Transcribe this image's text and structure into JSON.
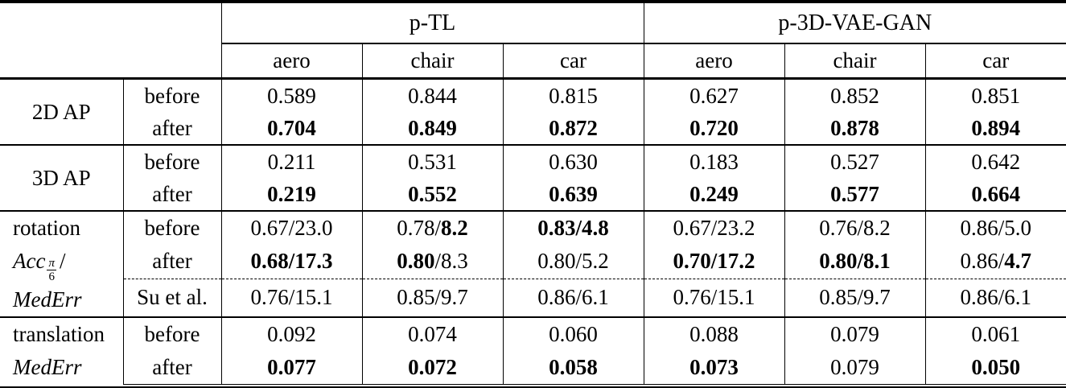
{
  "table": {
    "groups": [
      {
        "label": "p-TL"
      },
      {
        "label": "p-3D-VAE-GAN"
      }
    ],
    "columns": [
      "aero",
      "chair",
      "car",
      "aero",
      "chair",
      "car"
    ],
    "sections": [
      {
        "label": {
          "line1": "2D AP"
        },
        "rows": [
          {
            "sub": "before",
            "cells": [
              [
                {
                  "t": "0.589",
                  "b": false
                }
              ],
              [
                {
                  "t": "0.844",
                  "b": false
                }
              ],
              [
                {
                  "t": "0.815",
                  "b": false
                }
              ],
              [
                {
                  "t": "0.627",
                  "b": false
                }
              ],
              [
                {
                  "t": "0.852",
                  "b": false
                }
              ],
              [
                {
                  "t": "0.851",
                  "b": false
                }
              ]
            ]
          },
          {
            "sub": "after",
            "cells": [
              [
                {
                  "t": "0.704",
                  "b": true
                }
              ],
              [
                {
                  "t": "0.849",
                  "b": true
                }
              ],
              [
                {
                  "t": "0.872",
                  "b": true
                }
              ],
              [
                {
                  "t": "0.720",
                  "b": true
                }
              ],
              [
                {
                  "t": "0.878",
                  "b": true
                }
              ],
              [
                {
                  "t": "0.894",
                  "b": true
                }
              ]
            ]
          }
        ]
      },
      {
        "label": {
          "line1": "3D AP"
        },
        "rows": [
          {
            "sub": "before",
            "cells": [
              [
                {
                  "t": "0.211",
                  "b": false
                }
              ],
              [
                {
                  "t": "0.531",
                  "b": false
                }
              ],
              [
                {
                  "t": "0.630",
                  "b": false
                }
              ],
              [
                {
                  "t": "0.183",
                  "b": false
                }
              ],
              [
                {
                  "t": "0.527",
                  "b": false
                }
              ],
              [
                {
                  "t": "0.642",
                  "b": false
                }
              ]
            ]
          },
          {
            "sub": "after",
            "cells": [
              [
                {
                  "t": "0.219",
                  "b": true
                }
              ],
              [
                {
                  "t": "0.552",
                  "b": true
                }
              ],
              [
                {
                  "t": "0.639",
                  "b": true
                }
              ],
              [
                {
                  "t": "0.249",
                  "b": true
                }
              ],
              [
                {
                  "t": "0.577",
                  "b": true
                }
              ],
              [
                {
                  "t": "0.664",
                  "b": true
                }
              ]
            ]
          }
        ]
      },
      {
        "label": {
          "line1": "rotation",
          "acc": "Acc",
          "frac_num": "π",
          "frac_den": "6",
          "slash": "/",
          "mederr": "MedErr"
        },
        "rows": [
          {
            "sub": "before",
            "cells": [
              [
                {
                  "t": "0.67/23.0",
                  "b": false
                }
              ],
              [
                {
                  "t": "0.78/",
                  "b": false
                },
                {
                  "t": "8.2",
                  "b": true
                }
              ],
              [
                {
                  "t": "0.83/4.8",
                  "b": true
                }
              ],
              [
                {
                  "t": "0.67/23.2",
                  "b": false
                }
              ],
              [
                {
                  "t": "0.76/8.2",
                  "b": false
                }
              ],
              [
                {
                  "t": "0.86/5.0",
                  "b": false
                }
              ]
            ]
          },
          {
            "sub": "after",
            "cells": [
              [
                {
                  "t": "0.68/17.3",
                  "b": true
                }
              ],
              [
                {
                  "t": "0.80",
                  "b": true
                },
                {
                  "t": "/8.3",
                  "b": false
                }
              ],
              [
                {
                  "t": "0.80/5.2",
                  "b": false
                }
              ],
              [
                {
                  "t": "0.70/17.2",
                  "b": true
                }
              ],
              [
                {
                  "t": "0.80/8.1",
                  "b": true
                }
              ],
              [
                {
                  "t": "0.86/",
                  "b": false
                },
                {
                  "t": "4.7",
                  "b": true
                }
              ]
            ]
          },
          {
            "sub": "Su et al.",
            "cells": [
              [
                {
                  "t": "0.76/15.1",
                  "b": false
                }
              ],
              [
                {
                  "t": "0.85/9.7",
                  "b": false
                }
              ],
              [
                {
                  "t": "0.86/6.1",
                  "b": false
                }
              ],
              [
                {
                  "t": "0.76/15.1",
                  "b": false
                }
              ],
              [
                {
                  "t": "0.85/9.7",
                  "b": false
                }
              ],
              [
                {
                  "t": "0.86/6.1",
                  "b": false
                }
              ]
            ]
          }
        ]
      },
      {
        "label": {
          "line1": "translation",
          "mederr": "MedErr"
        },
        "rows": [
          {
            "sub": "before",
            "cells": [
              [
                {
                  "t": "0.092",
                  "b": false
                }
              ],
              [
                {
                  "t": "0.074",
                  "b": false
                }
              ],
              [
                {
                  "t": "0.060",
                  "b": false
                }
              ],
              [
                {
                  "t": "0.088",
                  "b": false
                }
              ],
              [
                {
                  "t": "0.079",
                  "b": false
                }
              ],
              [
                {
                  "t": "0.061",
                  "b": false
                }
              ]
            ]
          },
          {
            "sub": "after",
            "cells": [
              [
                {
                  "t": "0.077",
                  "b": true
                }
              ],
              [
                {
                  "t": "0.072",
                  "b": true
                }
              ],
              [
                {
                  "t": "0.058",
                  "b": true
                }
              ],
              [
                {
                  "t": "0.073",
                  "b": true
                }
              ],
              [
                {
                  "t": "0.079",
                  "b": false
                }
              ],
              [
                {
                  "t": "0.050",
                  "b": true
                }
              ]
            ]
          }
        ]
      }
    ]
  }
}
